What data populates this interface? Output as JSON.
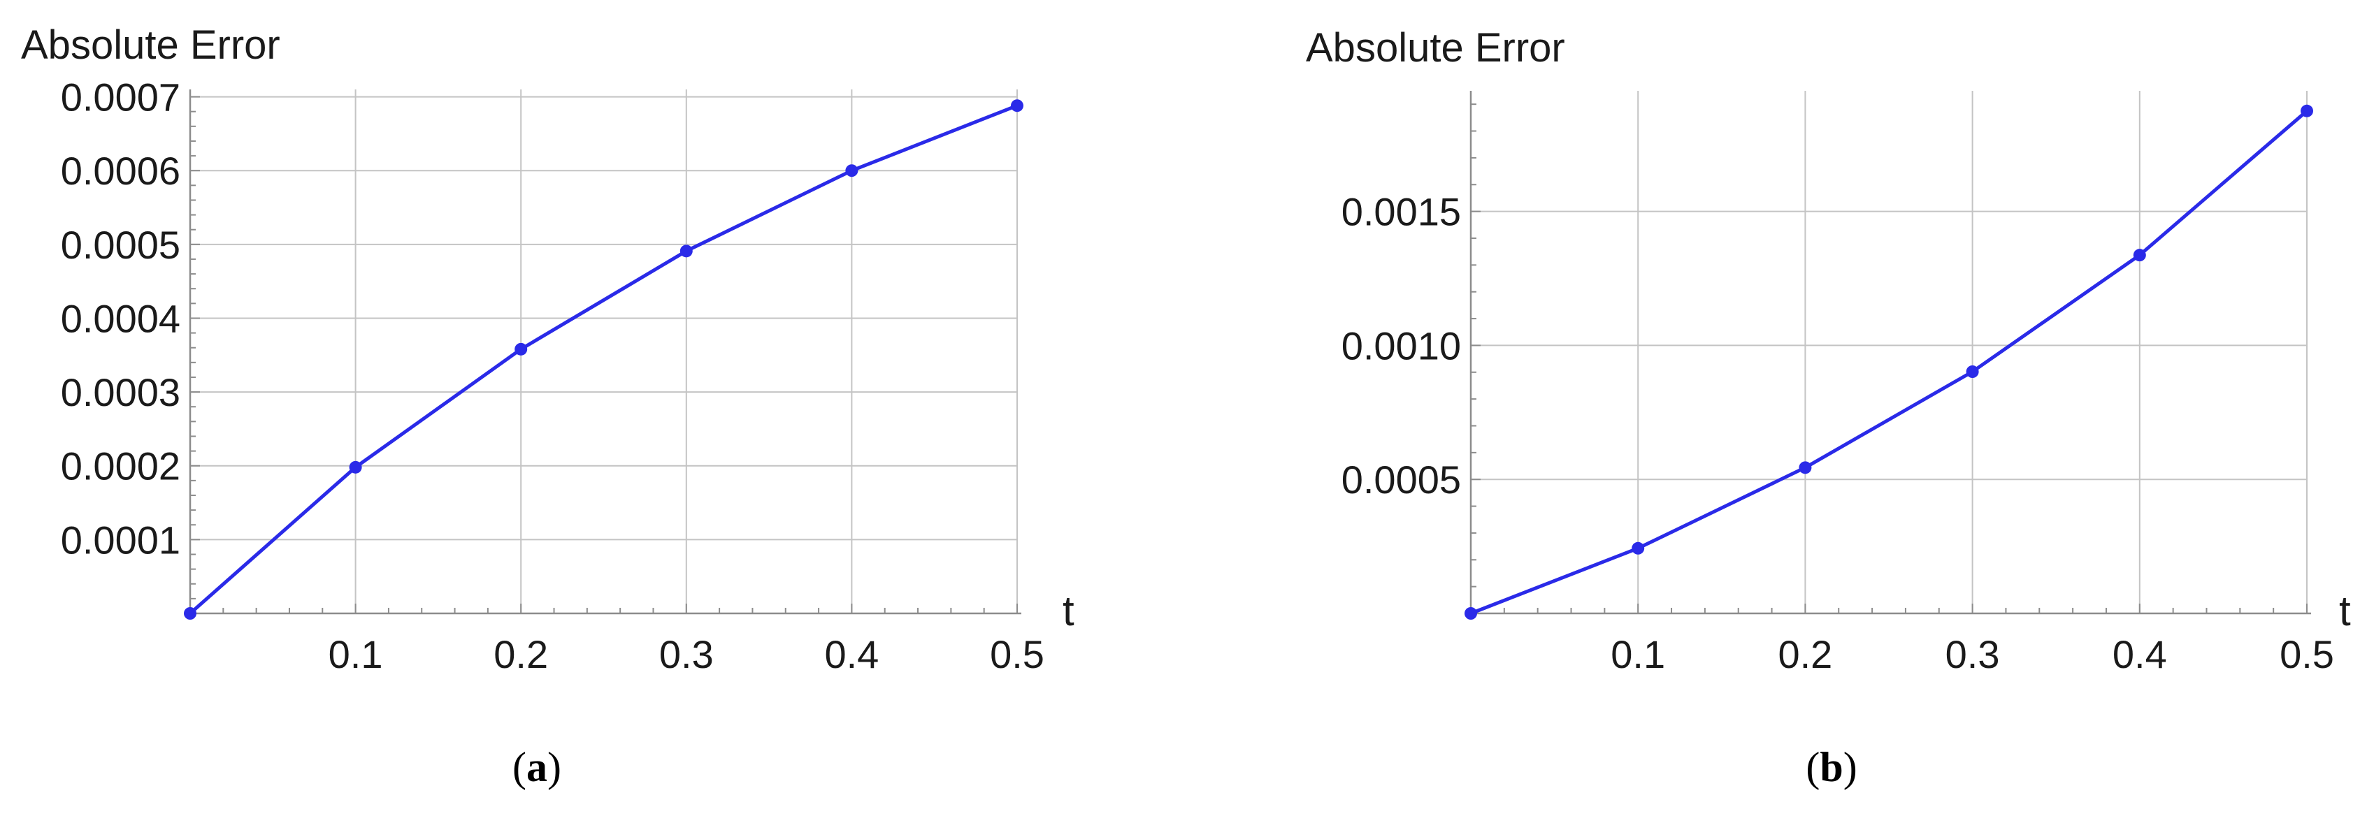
{
  "chart_data": [
    {
      "type": "line",
      "ylabel": "Absolute Error",
      "xlabel": "t",
      "caption": {
        "open": "(",
        "letter": "a",
        "close": ")"
      },
      "x": [
        0,
        0.1,
        0.2,
        0.3,
        0.4,
        0.5
      ],
      "y": [
        0,
        0.000198,
        0.000358,
        0.000491,
        0.0006,
        0.000688
      ],
      "xlim": [
        0,
        0.5
      ],
      "ylim": [
        0,
        0.00071
      ],
      "xticks": [
        0.1,
        0.2,
        0.3,
        0.4,
        0.5
      ],
      "xtick_labels": [
        "0.1",
        "0.2",
        "0.3",
        "0.4",
        "0.5"
      ],
      "yticks": [
        0.0001,
        0.0002,
        0.0003,
        0.0004,
        0.0005,
        0.0006,
        0.0007
      ],
      "ytick_labels": [
        "0.0001",
        "0.0002",
        "0.0003",
        "0.0004",
        "0.0005",
        "0.0006",
        "0.0007"
      ],
      "grid": true,
      "line_color": "#2a2ae8"
    },
    {
      "type": "line",
      "ylabel": "Absolute Error",
      "xlabel": "t",
      "caption": {
        "open": "(",
        "letter": "b",
        "close": ")"
      },
      "x": [
        0,
        0.1,
        0.2,
        0.3,
        0.4,
        0.5
      ],
      "y": [
        0,
        0.000243,
        0.000544,
        0.000902,
        0.001337,
        0.001875
      ],
      "xlim": [
        0,
        0.5
      ],
      "ylim": [
        0,
        0.00195
      ],
      "xticks": [
        0.1,
        0.2,
        0.3,
        0.4,
        0.5
      ],
      "xtick_labels": [
        "0.1",
        "0.2",
        "0.3",
        "0.4",
        "0.5"
      ],
      "yticks": [
        0.0005,
        0.001,
        0.0015
      ],
      "ytick_labels": [
        "0.0005",
        "0.0010",
        "0.0015"
      ],
      "grid": true,
      "line_color": "#2a2ae8"
    }
  ]
}
